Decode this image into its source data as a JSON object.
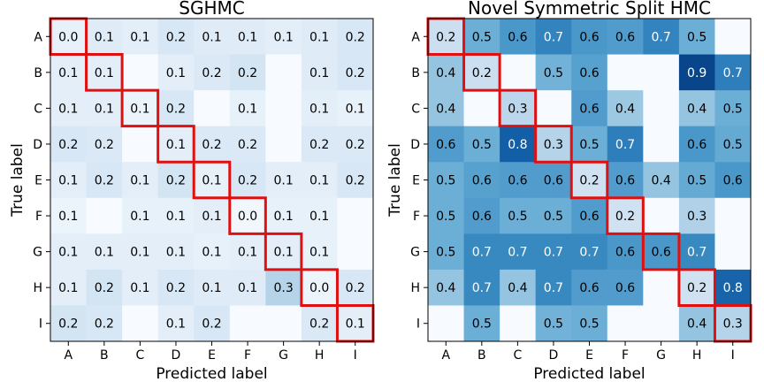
{
  "chart_data": [
    {
      "type": "heatmap",
      "title": "SGHMC",
      "xlabel": "Predicted label",
      "ylabel": "True label",
      "x_categories": [
        "A",
        "B",
        "C",
        "D",
        "E",
        "F",
        "G",
        "H",
        "I"
      ],
      "y_categories": [
        "A",
        "B",
        "C",
        "D",
        "E",
        "F",
        "G",
        "H",
        "I"
      ],
      "colormap": "Blues",
      "diagonal_highlight_color": "#e01010",
      "values": [
        [
          0.0,
          0.1,
          0.1,
          0.2,
          0.1,
          0.1,
          0.1,
          0.1,
          0.2
        ],
        [
          0.1,
          0.1,
          null,
          0.1,
          0.2,
          0.2,
          null,
          0.1,
          0.2
        ],
        [
          0.1,
          0.1,
          0.1,
          0.2,
          null,
          0.1,
          null,
          0.1,
          0.1
        ],
        [
          0.2,
          0.2,
          null,
          0.1,
          0.2,
          0.2,
          null,
          0.2,
          0.2
        ],
        [
          0.1,
          0.2,
          0.1,
          0.2,
          0.1,
          0.2,
          0.1,
          0.1,
          0.2
        ],
        [
          0.1,
          null,
          0.1,
          0.1,
          0.1,
          0.0,
          0.1,
          0.1,
          null
        ],
        [
          0.1,
          0.1,
          0.1,
          0.1,
          0.1,
          0.1,
          0.1,
          0.1,
          null
        ],
        [
          0.1,
          0.2,
          0.1,
          0.2,
          0.1,
          0.1,
          0.3,
          0.0,
          0.2
        ],
        [
          0.2,
          0.2,
          null,
          0.1,
          0.2,
          null,
          null,
          0.2,
          0.1
        ]
      ],
      "intensity": [
        [
          0.08,
          0.12,
          0.1,
          0.16,
          0.12,
          0.12,
          0.1,
          0.12,
          0.16
        ],
        [
          0.1,
          0.1,
          0.0,
          0.1,
          0.14,
          0.18,
          0.0,
          0.12,
          0.16
        ],
        [
          0.1,
          0.1,
          0.06,
          0.16,
          0.0,
          0.08,
          0.0,
          0.1,
          0.08
        ],
        [
          0.16,
          0.14,
          0.0,
          0.1,
          0.14,
          0.14,
          0.0,
          0.14,
          0.14
        ],
        [
          0.1,
          0.16,
          0.1,
          0.18,
          0.08,
          0.16,
          0.1,
          0.1,
          0.16
        ],
        [
          0.06,
          0.0,
          0.08,
          0.08,
          0.1,
          0.03,
          0.08,
          0.08,
          0.0
        ],
        [
          0.1,
          0.1,
          0.1,
          0.1,
          0.08,
          0.1,
          0.1,
          0.08,
          0.0
        ],
        [
          0.1,
          0.18,
          0.1,
          0.16,
          0.12,
          0.12,
          0.3,
          0.05,
          0.16
        ],
        [
          0.18,
          0.16,
          0.0,
          0.1,
          0.16,
          0.0,
          0.0,
          0.14,
          0.1
        ]
      ]
    },
    {
      "type": "heatmap",
      "title": "Novel Symmetric Split HMC",
      "xlabel": "Predicted label",
      "ylabel": "True label",
      "x_categories": [
        "A",
        "B",
        "C",
        "D",
        "E",
        "F",
        "G",
        "H",
        "I"
      ],
      "y_categories": [
        "A",
        "B",
        "C",
        "D",
        "E",
        "F",
        "G",
        "H",
        "I"
      ],
      "colormap": "Blues",
      "diagonal_highlight_color": "#e01010",
      "values": [
        [
          0.2,
          0.5,
          0.6,
          0.7,
          0.6,
          0.6,
          0.7,
          0.5,
          null
        ],
        [
          0.4,
          0.2,
          null,
          0.5,
          0.6,
          null,
          null,
          0.9,
          0.7
        ],
        [
          0.4,
          null,
          0.3,
          null,
          0.6,
          0.4,
          null,
          0.4,
          0.5
        ],
        [
          0.6,
          0.5,
          0.8,
          0.3,
          0.5,
          0.7,
          null,
          0.6,
          0.5
        ],
        [
          0.5,
          0.6,
          0.6,
          0.6,
          0.2,
          0.6,
          0.4,
          0.5,
          0.6
        ],
        [
          0.5,
          0.6,
          0.5,
          0.5,
          0.6,
          0.2,
          null,
          0.3,
          null
        ],
        [
          0.5,
          0.7,
          0.7,
          0.7,
          0.7,
          0.6,
          0.6,
          0.7,
          null
        ],
        [
          0.4,
          0.7,
          0.4,
          0.7,
          0.6,
          0.6,
          null,
          0.2,
          0.8
        ],
        [
          null,
          0.5,
          null,
          0.5,
          0.5,
          null,
          null,
          0.4,
          0.3
        ]
      ],
      "intensity": [
        [
          0.22,
          0.5,
          0.6,
          0.68,
          0.6,
          0.58,
          0.68,
          0.5,
          0.0
        ],
        [
          0.4,
          0.22,
          0.0,
          0.48,
          0.56,
          0.0,
          0.0,
          0.92,
          0.7
        ],
        [
          0.4,
          0.0,
          0.28,
          0.0,
          0.58,
          0.38,
          0.0,
          0.4,
          0.5
        ],
        [
          0.58,
          0.5,
          0.82,
          0.3,
          0.5,
          0.7,
          0.0,
          0.6,
          0.52
        ],
        [
          0.5,
          0.56,
          0.58,
          0.58,
          0.2,
          0.58,
          0.4,
          0.52,
          0.6
        ],
        [
          0.5,
          0.58,
          0.5,
          0.5,
          0.58,
          0.2,
          0.0,
          0.32,
          0.0
        ],
        [
          0.5,
          0.66,
          0.66,
          0.66,
          0.66,
          0.6,
          0.6,
          0.66,
          0.0
        ],
        [
          0.4,
          0.66,
          0.4,
          0.66,
          0.58,
          0.58,
          0.0,
          0.2,
          0.8
        ],
        [
          0.0,
          0.5,
          0.0,
          0.48,
          0.5,
          0.0,
          0.0,
          0.4,
          0.3
        ]
      ]
    }
  ]
}
